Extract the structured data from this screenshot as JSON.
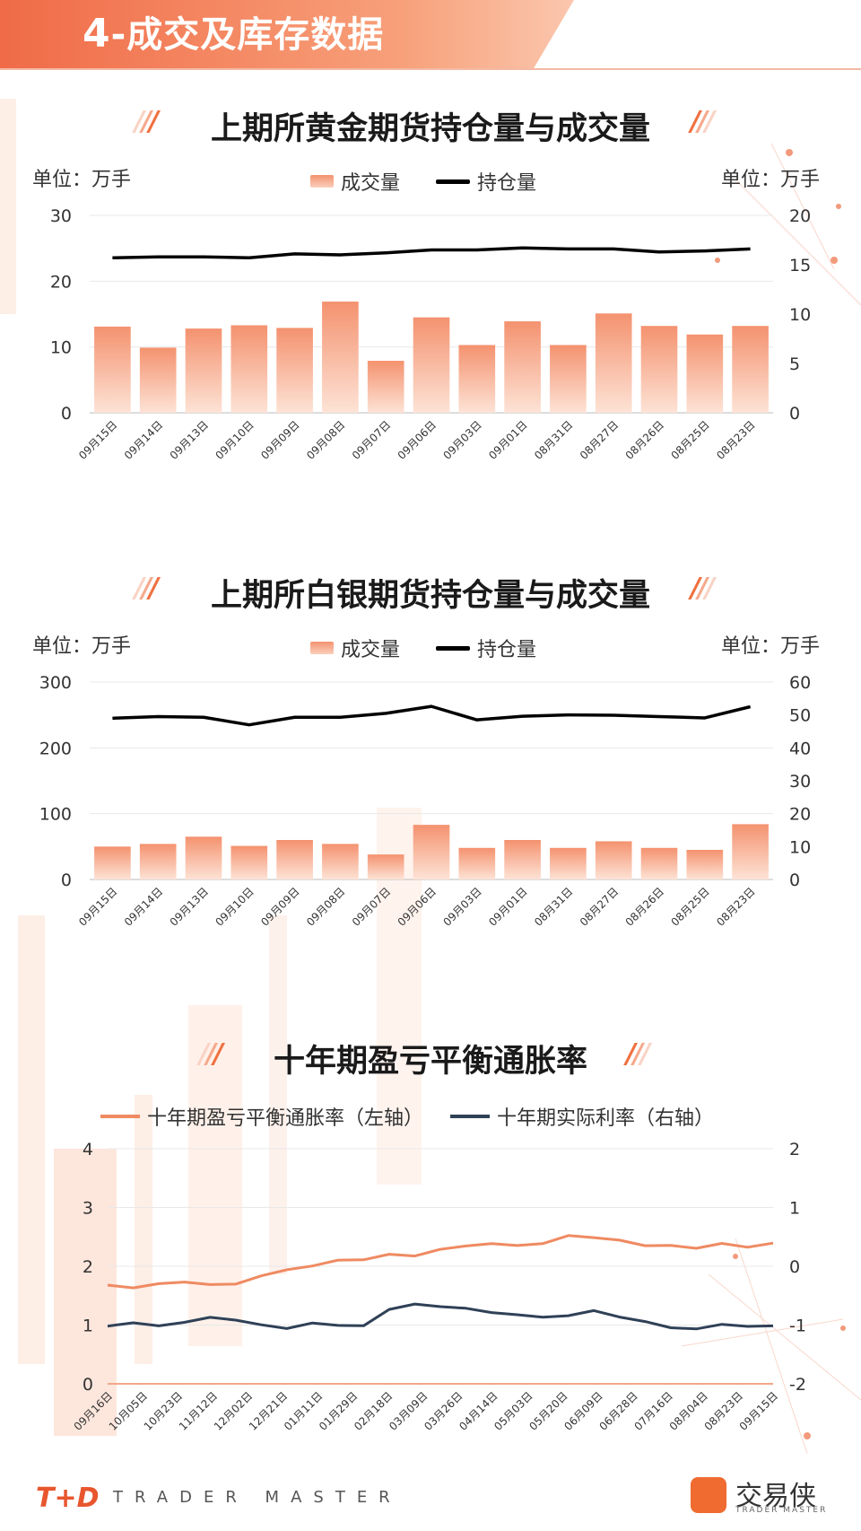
{
  "header": {
    "number": "4",
    "title": "-成交及库存数据"
  },
  "charts": [
    {
      "title": "上期所黄金期货持仓量与成交量",
      "unit_left": "单位：万手",
      "unit_right": "单位：万手",
      "legend_bar": "成交量",
      "legend_line": "持仓量"
    },
    {
      "title": "上期所白银期货持仓量与成交量",
      "unit_left": "单位：万手",
      "unit_right": "单位：万手",
      "legend_bar": "成交量",
      "legend_line": "持仓量"
    },
    {
      "title": "十年期盈亏平衡通胀率",
      "legend_a": "十年期盈亏平衡通胀率（左轴）",
      "legend_b": "十年期实际利率（右轴）"
    }
  ],
  "footer": {
    "logo": "T+D",
    "tagline": "TRADER MASTER",
    "brand": "交易侠",
    "brand_sub": "TRADER MASTER"
  },
  "colors": {
    "accent": "#f06b47",
    "bar_top": "#f4926f",
    "bar_bottom": "#fde3d6",
    "line": "#000000",
    "bei": "#ef8a62",
    "real": "#2f4157"
  },
  "chart_data": [
    {
      "type": "bar",
      "title": "上期所黄金期货持仓量与成交量",
      "categories": [
        "09月15日",
        "09月14日",
        "09月13日",
        "09月10日",
        "09月09日",
        "09月08日",
        "09月07日",
        "09月06日",
        "09月03日",
        "09月01日",
        "08月31日",
        "08月27日",
        "08月26日",
        "08月25日",
        "08月23日"
      ],
      "series": [
        {
          "name": "成交量",
          "axis": "left",
          "type": "bar",
          "values": [
            13.1,
            9.9,
            12.8,
            13.3,
            12.9,
            16.9,
            7.9,
            14.5,
            10.3,
            13.9,
            10.3,
            15.1,
            13.2,
            11.9,
            13.2
          ]
        },
        {
          "name": "持仓量",
          "axis": "right",
          "type": "line",
          "values": [
            15.7,
            15.8,
            15.8,
            15.7,
            16.1,
            16.0,
            16.2,
            16.5,
            16.5,
            16.7,
            16.6,
            16.6,
            16.3,
            16.4,
            16.6
          ]
        }
      ],
      "ylim_left": [
        0,
        30
      ],
      "yticks_left": [
        0,
        10,
        20,
        30
      ],
      "ylim_right": [
        0,
        20
      ],
      "yticks_right": [
        0,
        5,
        10,
        15,
        20
      ],
      "grid": true
    },
    {
      "type": "bar",
      "title": "上期所白银期货持仓量与成交量",
      "categories": [
        "09月15日",
        "09月14日",
        "09月13日",
        "09月10日",
        "09月09日",
        "09月08日",
        "09月07日",
        "09月06日",
        "09月03日",
        "09月01日",
        "08月31日",
        "08月27日",
        "08月26日",
        "08月25日",
        "08月23日"
      ],
      "series": [
        {
          "name": "成交量",
          "axis": "left",
          "type": "bar",
          "values": [
            50,
            54,
            65,
            51,
            60,
            54,
            38,
            83,
            48,
            60,
            48,
            58,
            48,
            45,
            84
          ]
        },
        {
          "name": "持仓量",
          "axis": "right",
          "type": "line",
          "values": [
            49,
            49.5,
            49.3,
            47,
            49.3,
            49.3,
            50.5,
            52.6,
            48.5,
            49.6,
            50,
            49.9,
            49.5,
            49.1,
            52.5
          ]
        }
      ],
      "ylim_left": [
        0,
        300
      ],
      "yticks_left": [
        0,
        100,
        200,
        300
      ],
      "ylim_right": [
        0,
        60
      ],
      "yticks_right": [
        0,
        10,
        20,
        30,
        40,
        50,
        60
      ],
      "grid": true
    },
    {
      "type": "line",
      "title": "十年期盈亏平衡通胀率",
      "x_ticks": [
        "09月16日",
        "10月05日",
        "10月23日",
        "11月12日",
        "12月02日",
        "12月21日",
        "01月11日",
        "01月29日",
        "02月18日",
        "03月09日",
        "03月26日",
        "04月14日",
        "05月03日",
        "05月20日",
        "06月09日",
        "06月28日",
        "07月16日",
        "08月04日",
        "08月23日",
        "09月15日"
      ],
      "series": [
        {
          "name": "十年期盈亏平衡通胀率（左轴）",
          "axis": "left",
          "values": [
            1.68,
            1.62,
            1.69,
            1.73,
            1.7,
            1.71,
            1.84,
            1.93,
            1.99,
            2.1,
            2.12,
            2.22,
            2.18,
            2.28,
            2.33,
            2.38,
            2.36,
            2.4,
            2.53,
            2.48,
            2.43,
            2.34,
            2.36,
            2.32,
            2.4,
            2.32,
            2.38
          ]
        },
        {
          "name": "十年期实际利率（右轴）",
          "axis": "right",
          "values": [
            -1.02,
            -0.95,
            -1.0,
            -0.95,
            -0.88,
            -0.93,
            -1.0,
            -1.05,
            -0.95,
            -1.0,
            -1.02,
            -0.75,
            -0.65,
            -0.68,
            -0.7,
            -0.78,
            -0.83,
            -0.88,
            -0.85,
            -0.75,
            -0.85,
            -0.93,
            -1.05,
            -1.08,
            -1.0,
            -1.02,
            -1.0
          ]
        }
      ],
      "ylim_left": [
        0,
        4
      ],
      "yticks_left": [
        0,
        1,
        2,
        3,
        4
      ],
      "ylim_right": [
        -2,
        2
      ],
      "yticks_right": [
        -2,
        -1,
        0,
        1,
        2
      ],
      "grid": true
    }
  ]
}
